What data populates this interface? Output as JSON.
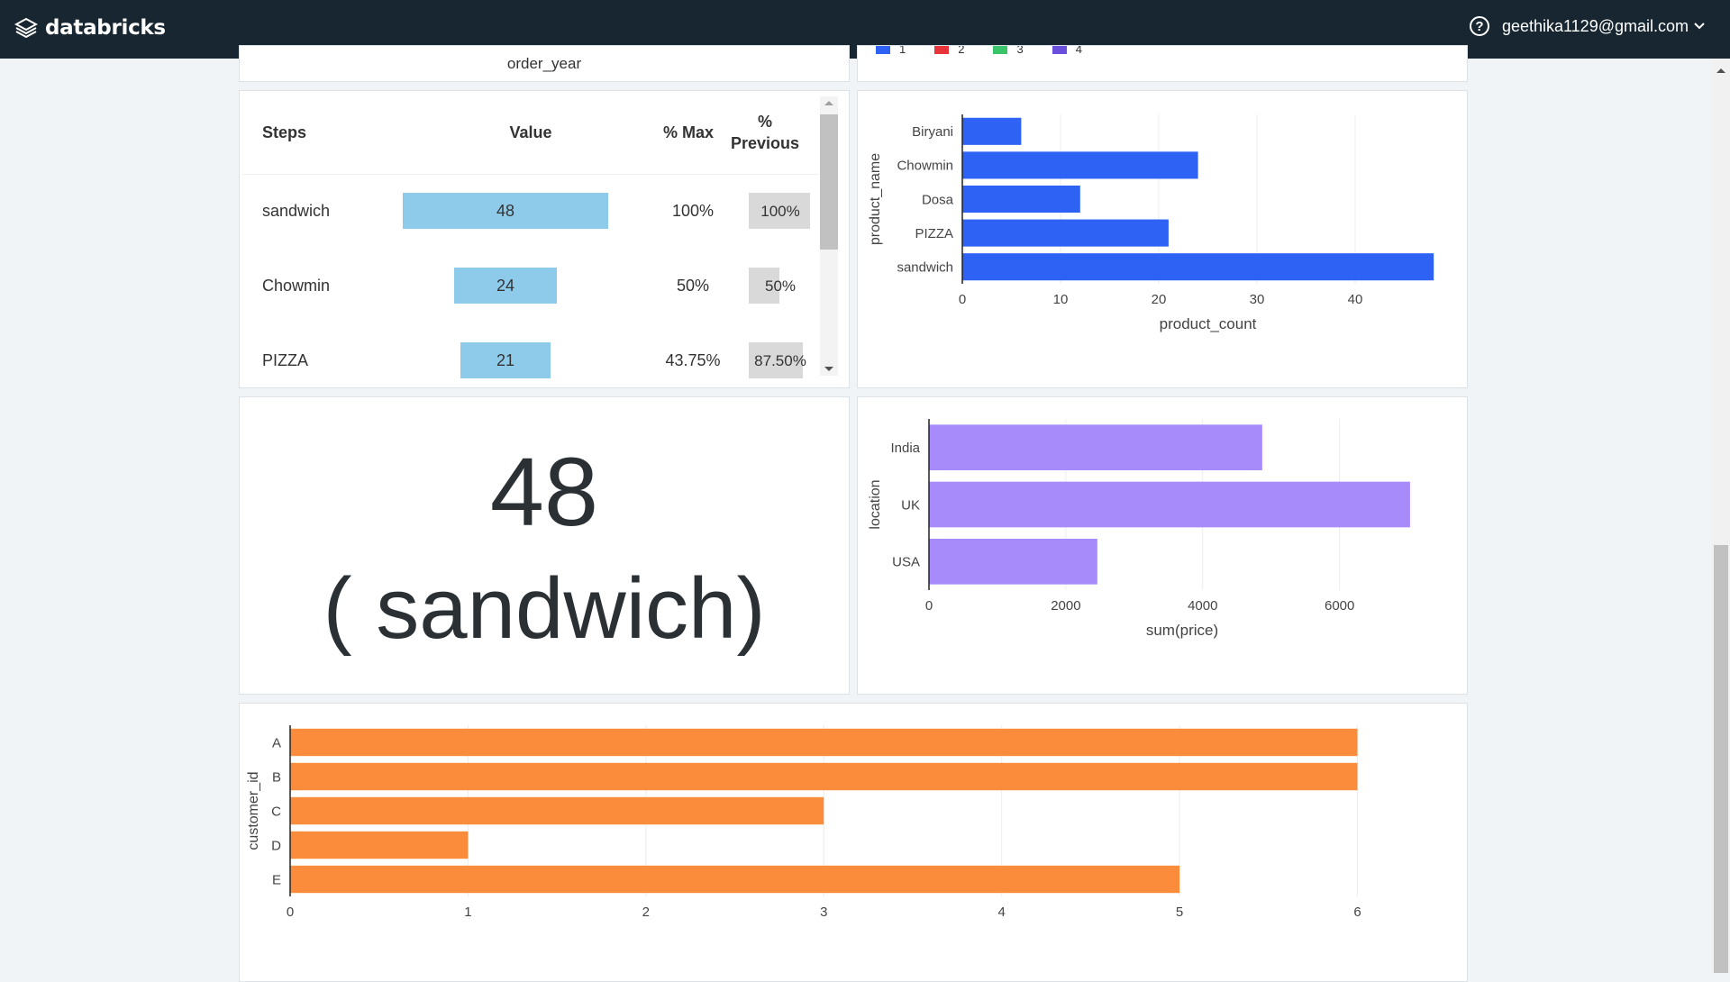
{
  "app": {
    "brand": "databricks",
    "user_email": "geethika1129@gmail.com",
    "help_icon": "?"
  },
  "top_left_panel": {
    "axis_label": "order_year"
  },
  "top_right_panel": {
    "legend": [
      {
        "label": "1",
        "color": "#2e62f5"
      },
      {
        "label": "2",
        "color": "#e8343b"
      },
      {
        "label": "3",
        "color": "#3cc46a"
      },
      {
        "label": "4",
        "color": "#6a4fdc"
      }
    ]
  },
  "funnel": {
    "headers": {
      "steps": "Steps",
      "value": "Value",
      "pct_max": "% Max",
      "pct_prev_1": "%",
      "pct_prev_2": "Previous"
    },
    "rows": [
      {
        "step": "sandwich",
        "value": "48",
        "pct_max": "100%",
        "pct_prev": "100%",
        "frac": 1.0,
        "prev_frac": 1.0
      },
      {
        "step": "Chowmin",
        "value": "24",
        "pct_max": "50%",
        "pct_prev": "50%",
        "frac": 0.5,
        "prev_frac": 0.5
      },
      {
        "step": "PIZZA",
        "value": "21",
        "pct_max": "43.75%",
        "pct_prev": "87.50%",
        "frac": 0.4375,
        "prev_frac": 0.875
      }
    ],
    "bar_color": "#8ecbea"
  },
  "counter": {
    "value": "48",
    "label": "( sandwich)"
  },
  "chart_data": [
    {
      "type": "bar",
      "orientation": "horizontal",
      "categories": [
        "Biryani",
        "Chowmin",
        "Dosa",
        "PIZZA",
        "sandwich"
      ],
      "values": [
        6,
        24,
        12,
        21,
        48
      ],
      "xlabel": "product_count",
      "ylabel": "product_name",
      "xlim": [
        0,
        50
      ],
      "xticks": [
        0,
        10,
        20,
        30,
        40
      ],
      "color": "#2e62f5",
      "grid": true
    },
    {
      "type": "bar",
      "orientation": "horizontal",
      "categories": [
        "India",
        "UK",
        "USA"
      ],
      "values": [
        4870,
        7030,
        2460
      ],
      "xlabel": "sum(price)",
      "ylabel": "location",
      "xlim": [
        0,
        7400
      ],
      "xticks": [
        0,
        2000,
        4000,
        6000
      ],
      "color": "#a78bfa",
      "grid": true
    },
    {
      "type": "bar",
      "orientation": "horizontal",
      "categories": [
        "A",
        "B",
        "C",
        "D",
        "E"
      ],
      "values": [
        6,
        6,
        3,
        1,
        5
      ],
      "xlabel": "",
      "ylabel": "customer_id",
      "xlim": [
        0,
        6.2
      ],
      "xticks": [
        0,
        1,
        2,
        3,
        4,
        5,
        6
      ],
      "color": "#fb8c3c",
      "grid": true
    }
  ]
}
